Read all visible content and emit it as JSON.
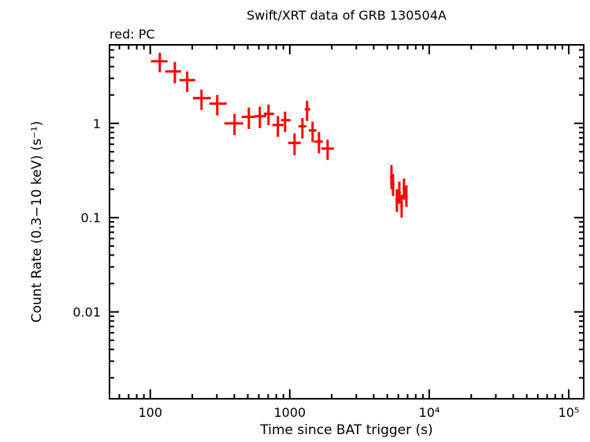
{
  "chart_data": {
    "type": "scatter",
    "title": "Swift/XRT data of GRB 130504A",
    "subtitle": "red: PC",
    "xlabel": "Time since BAT trigger (s)",
    "ylabel": "Count Rate (0.3−10 keV) (s⁻¹)",
    "xscale": "log",
    "yscale": "log",
    "xlim": [
      51,
      128000
    ],
    "ylim": [
      0.0012,
      6.8
    ],
    "grid": false,
    "xticks": [
      {
        "value": 100,
        "label": "100"
      },
      {
        "value": 1000,
        "label": "1000"
      },
      {
        "value": 10000,
        "label": "10⁴"
      },
      {
        "value": 100000,
        "label": "10⁵"
      }
    ],
    "yticks": [
      {
        "value": 1,
        "label": "1"
      },
      {
        "value": 0.1,
        "label": "0.1"
      },
      {
        "value": 0.01,
        "label": "0.01"
      }
    ],
    "series": [
      {
        "color": "#ff0000",
        "fields": [
          "t",
          "t_min",
          "t_max",
          "rate",
          "rate_min",
          "rate_max"
        ],
        "points": [
          [
            117,
            101,
            133,
            4.55,
            3.48,
            5.62
          ],
          [
            150,
            128,
            166,
            3.55,
            2.66,
            4.47
          ],
          [
            184,
            162,
            210,
            2.87,
            2.15,
            3.55
          ],
          [
            233,
            202,
            272,
            1.85,
            1.39,
            2.28
          ],
          [
            302,
            265,
            353,
            1.62,
            1.21,
            2.0
          ],
          [
            402,
            340,
            464,
            1.0,
            0.75,
            1.26
          ],
          [
            509,
            452,
            564,
            1.17,
            0.87,
            1.47
          ],
          [
            610,
            557,
            678,
            1.19,
            0.89,
            1.5
          ],
          [
            704,
            651,
            771,
            1.26,
            0.96,
            1.58
          ],
          [
            822,
            751,
            902,
            0.96,
            0.72,
            1.19
          ],
          [
            925,
            867,
            1014,
            1.08,
            0.81,
            1.33
          ],
          [
            1082,
            975,
            1199,
            0.62,
            0.46,
            0.78
          ],
          [
            1232,
            1153,
            1314,
            0.93,
            0.69,
            1.14
          ],
          [
            1331,
            1279,
            1403,
            1.41,
            1.06,
            1.74
          ],
          [
            1458,
            1368,
            1556,
            0.84,
            0.63,
            1.04
          ],
          [
            1618,
            1496,
            1726,
            0.64,
            0.48,
            0.81
          ],
          [
            1867,
            1683,
            2070,
            0.54,
            0.41,
            0.67
          ],
          [
            5360,
            5230,
            5500,
            0.27,
            0.2,
            0.36
          ],
          [
            5500,
            5380,
            5640,
            0.224,
            0.17,
            0.29
          ],
          [
            5860,
            5720,
            6000,
            0.153,
            0.115,
            0.2
          ],
          [
            6100,
            5960,
            6250,
            0.185,
            0.14,
            0.24
          ],
          [
            6340,
            6200,
            6480,
            0.133,
            0.1,
            0.175
          ],
          [
            6590,
            6450,
            6740,
            0.204,
            0.155,
            0.26
          ],
          [
            6860,
            6720,
            7000,
            0.168,
            0.13,
            0.22
          ]
        ]
      }
    ]
  }
}
